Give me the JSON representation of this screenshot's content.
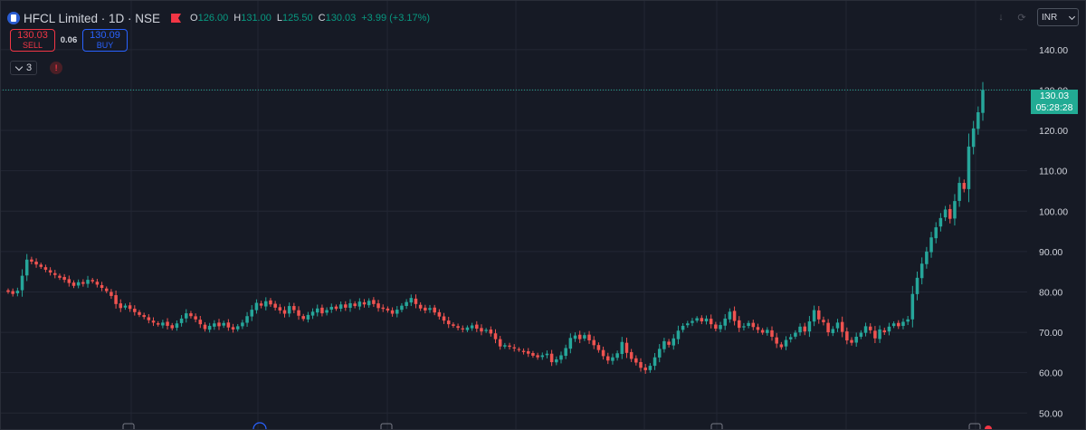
{
  "legend": {
    "symbol_title": "HFCL Limited · 1D · NSE",
    "open_label": "O",
    "open": "126.00",
    "high_label": "H",
    "high": "131.00",
    "low_label": "L",
    "low": "125.50",
    "close_label": "C",
    "close": "130.03",
    "change": "+3.99 (+3.17%)"
  },
  "trade": {
    "sell_price": "130.03",
    "sell_label": "SELL",
    "spread": "0.06",
    "buy_price": "130.09",
    "buy_label": "BUY"
  },
  "indicators": {
    "count": "3",
    "warning": "!"
  },
  "toolbar": {
    "currency": "INR"
  },
  "last_price": {
    "price": "130.03",
    "countdown": "05:28:28"
  },
  "colors": {
    "up": "#26a69a",
    "down": "#ef5350",
    "background": "#161a25",
    "grid": "#232734",
    "last_price_line": "#22ab94"
  },
  "chart_data": {
    "type": "candlestick",
    "ylim": [
      45.8,
      152.3
    ],
    "y_ticks": [
      140,
      130,
      120,
      110,
      100,
      90,
      80,
      70,
      60,
      50
    ],
    "y_tick_labels": [
      "140.00",
      "130.00",
      "120.00",
      "110.00",
      "100.00",
      "90.00",
      "80.00",
      "70.00",
      "60.00",
      "50.00"
    ],
    "grid": true,
    "last_price": 130.03,
    "closes": [
      80,
      79.5,
      80.3,
      84,
      88,
      87.5,
      86.8,
      86.2,
      85.5,
      84.8,
      84.2,
      83.5,
      83,
      82.2,
      81.5,
      82.4,
      82,
      83,
      82.6,
      81.8,
      81,
      80.2,
      79,
      77,
      76,
      76.6,
      75.8,
      75,
      74.3,
      73.8,
      73,
      72.4,
      71.9,
      72.4,
      71.6,
      71,
      72.2,
      73.4,
      74.7,
      74,
      73.2,
      72,
      70.8,
      71.6,
      72.2,
      71.5,
      72.3,
      71.2,
      70.7,
      71.5,
      72.4,
      74,
      75.6,
      77.3,
      76.6,
      77.7,
      76.9,
      76.1,
      75.4,
      74.6,
      76.5,
      75.5,
      74.1,
      73.3,
      74.3,
      75.1,
      75.9,
      74.7,
      75.5,
      76.3,
      75.8,
      76.9,
      76.1,
      77.2,
      76.5,
      77.6,
      76.9,
      77.8,
      77,
      76,
      75.8,
      75.4,
      74.6,
      75.6,
      76.6,
      77.5,
      78.5,
      77,
      75.9,
      75.4,
      76,
      74.9,
      73.9,
      72.9,
      72,
      71.6,
      71.1,
      70.7,
      71.2,
      71.7,
      70.9,
      70.2,
      70.6,
      69.7,
      68.3,
      66.5,
      66.8,
      66.4,
      66,
      65.6,
      65.1,
      64.7,
      64.2,
      63.8,
      64.3,
      64.7,
      62.6,
      63.3,
      64.3,
      66.1,
      68.6,
      69.2,
      68.3,
      69.3,
      68,
      66.8,
      65.6,
      64.1,
      63,
      63.8,
      64.8,
      67.6,
      64.9,
      63.4,
      62.5,
      61.2,
      60.6,
      61.7,
      63.8,
      65.9,
      67.8,
      66.9,
      68.5,
      70.4,
      71.6,
      72.2,
      72.8,
      73.5,
      72.7,
      73.4,
      72,
      70.9,
      71.8,
      73.4,
      75.1,
      72.8,
      71.1,
      71.5,
      72.3,
      71.3,
      70.6,
      69.9,
      70.6,
      68.9,
      67.2,
      66.3,
      68.1,
      68.8,
      69.9,
      71.4,
      70.2,
      72.7,
      75.5,
      73.2,
      72.5,
      70,
      70.8,
      72.4,
      70.1,
      68,
      67.4,
      68.9,
      69.9,
      71.5,
      70.5,
      68.5,
      70.7,
      70,
      71.4,
      72.2,
      71.5,
      72.6,
      73.2,
      79.5,
      83.5,
      87,
      90,
      93.5,
      96,
      98.3,
      100.4,
      98.1,
      102.5,
      107,
      105.5,
      116,
      120.5,
      124.5,
      130.03
    ]
  }
}
